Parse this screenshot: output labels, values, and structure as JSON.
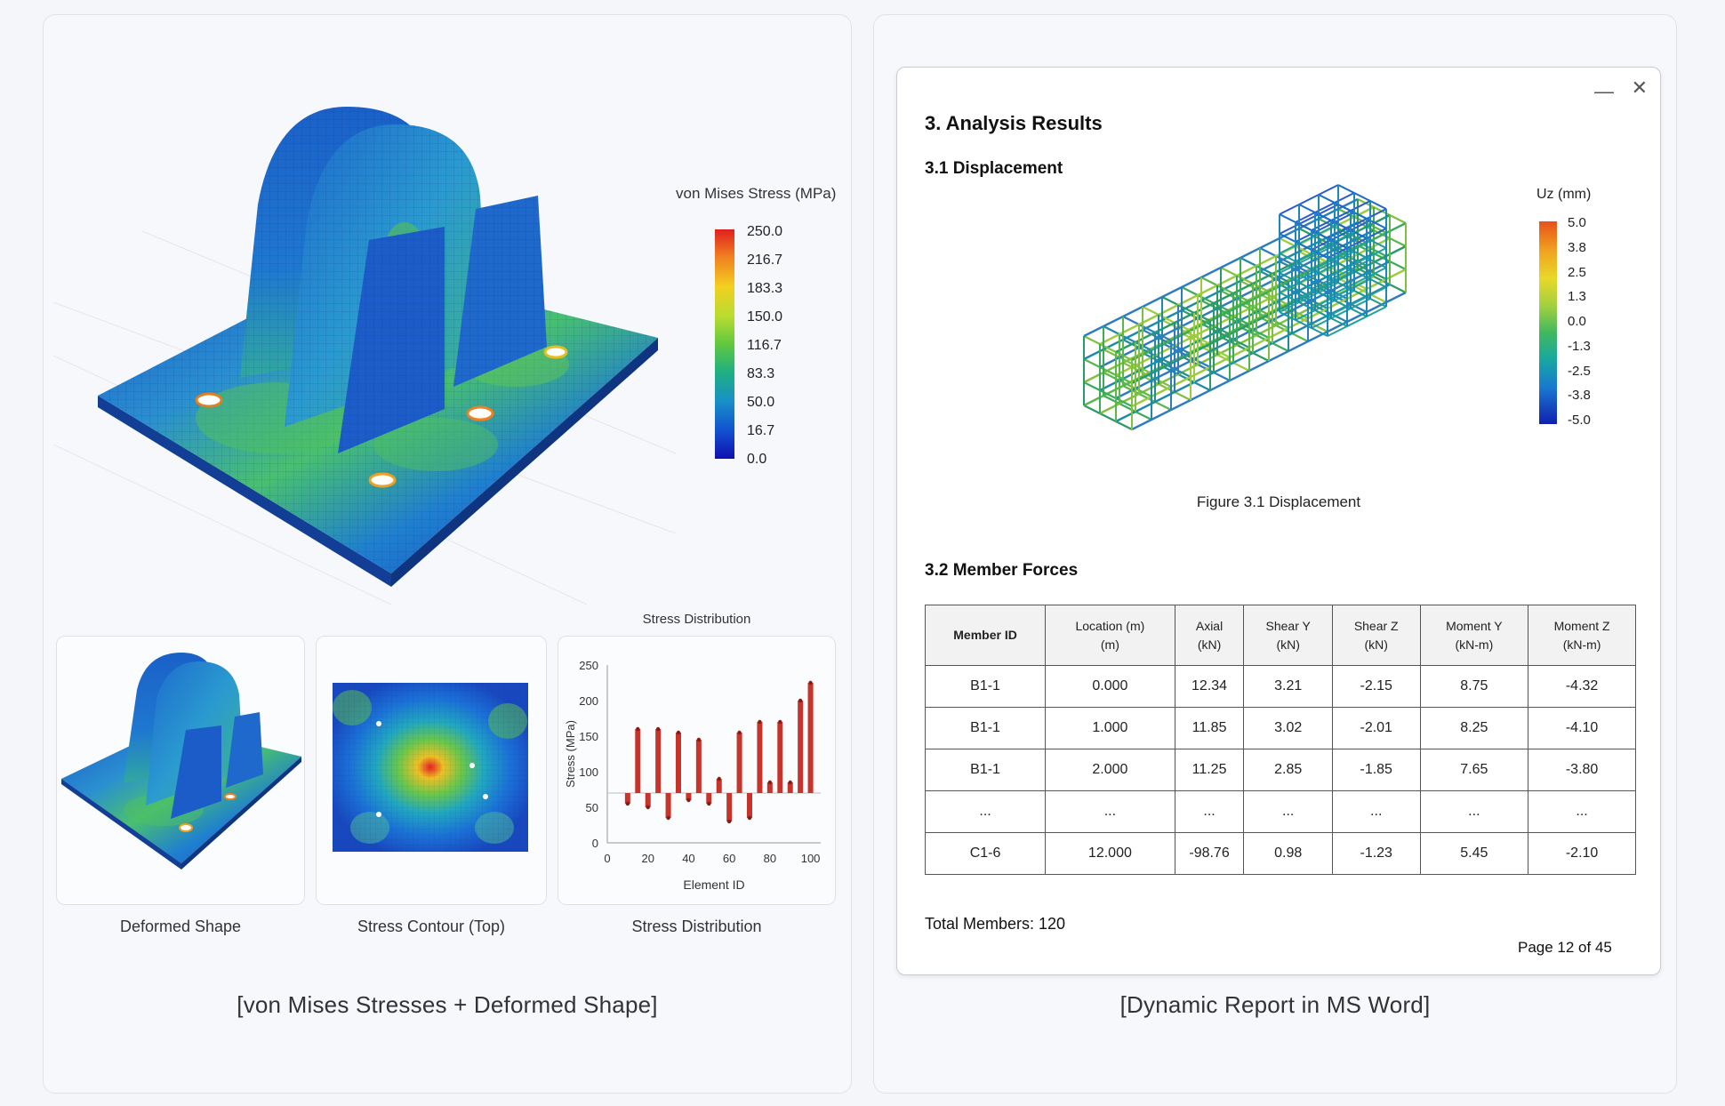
{
  "left": {
    "legend": {
      "title": "von Mises Stress (MPa)",
      "ticks": [
        "250.0",
        "216.7",
        "183.3",
        "150.0",
        "116.7",
        "83.3",
        "50.0",
        "16.7",
        "0.0"
      ]
    },
    "thumbnails": [
      {
        "caption": "Deformed Shape"
      },
      {
        "caption": "Stress Contour (Top)"
      },
      {
        "caption": "Stress Distribution"
      }
    ],
    "caption": "[von Mises Stresses + Deformed Shape]"
  },
  "chart_data": {
    "type": "bar",
    "title": "Stress Distribution",
    "xlabel": "Element ID",
    "ylabel": "Stress (MPa)",
    "xlim": [
      0,
      105
    ],
    "ylim": [
      0,
      250
    ],
    "x_ticks": [
      "0",
      "20",
      "40",
      "60",
      "80",
      "100"
    ],
    "y_ticks": [
      "0",
      "50",
      "100",
      "150",
      "200",
      "250"
    ],
    "baseline": 70,
    "x": [
      10,
      15,
      20,
      25,
      30,
      35,
      40,
      45,
      50,
      55,
      60,
      65,
      70,
      75,
      80,
      85,
      90,
      95,
      100
    ],
    "values": [
      55,
      160,
      50,
      160,
      35,
      155,
      60,
      145,
      55,
      90,
      30,
      155,
      35,
      170,
      85,
      170,
      85,
      200,
      225
    ],
    "colors": {
      "bar": "#c8332b"
    }
  },
  "right": {
    "window_controls": {
      "minimize": "—",
      "close": "✕"
    },
    "section_title": "3.  Analysis Results",
    "sub_displacement": "3.1 Displacement",
    "uz_legend": {
      "title": "Uz (mm)",
      "ticks": [
        "5.0",
        "3.8",
        "2.5",
        "1.3",
        "0.0",
        "-1.3",
        "-2.5",
        "-3.8",
        "-5.0"
      ]
    },
    "figure_caption": "Figure 3.1 Displacement",
    "sub_forces": "3.2 Member Forces",
    "table": {
      "headers": [
        {
          "line1": "Member ID",
          "line2": ""
        },
        {
          "line1": "Location (m)",
          "line2": "(m)"
        },
        {
          "line1": "Axial",
          "line2": "(kN)"
        },
        {
          "line1": "Shear Y",
          "line2": "(kN)"
        },
        {
          "line1": "Shear Z",
          "line2": "(kN)"
        },
        {
          "line1": "Moment Y",
          "line2": "(kN-m)"
        },
        {
          "line1": "Moment Z",
          "line2": "(kN-m)"
        }
      ],
      "rows": [
        [
          "B1-1",
          "0.000",
          "12.34",
          "3.21",
          "-2.15",
          "8.75",
          "-4.32"
        ],
        [
          "B1-1",
          "1.000",
          "11.85",
          "3.02",
          "-2.01",
          "8.25",
          "-4.10"
        ],
        [
          "B1-1",
          "2.000",
          "11.25",
          "2.85",
          "-1.85",
          "7.65",
          "-3.80"
        ],
        [
          "...",
          "...",
          "...",
          "...",
          "...",
          "...",
          "..."
        ],
        [
          "C1-6",
          "12.000",
          "-98.76",
          "0.98",
          "-1.23",
          "5.45",
          "-2.10"
        ]
      ]
    },
    "total_members": "Total Members: 120",
    "page_number": "Page 12 of 45",
    "caption": "[Dynamic Report in MS Word]"
  }
}
